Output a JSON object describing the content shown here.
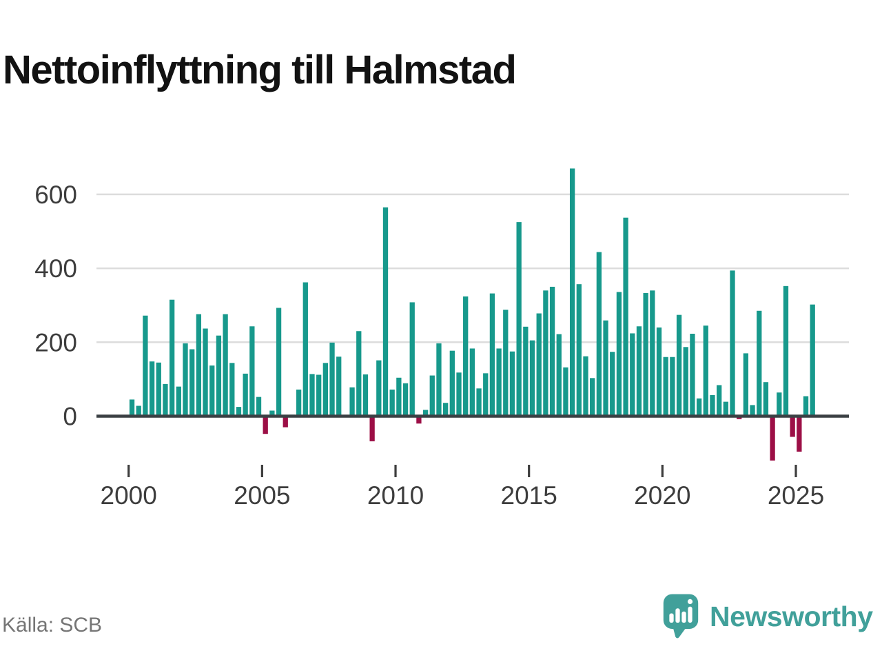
{
  "title": "Nettoinflyttning till Halmstad",
  "source": "Källa: SCB",
  "logo": {
    "text": "Newsworthy",
    "icon": "newsworthy-speech-bubble-bar-chart-icon"
  },
  "colors": {
    "positive_bar": "#17998c",
    "negative_bar": "#9c0f46",
    "gridline": "#dcdcdc",
    "axis_line": "#3b4044",
    "tick_label": "#3d3d3d",
    "title_text": "#121212",
    "source_text": "#757575",
    "logo_teal": "#41a09a"
  },
  "chart_data": {
    "type": "bar",
    "title": "Nettoinflyttning till Halmstad",
    "xlabel": "",
    "ylabel": "",
    "grid": "horizontal",
    "legend": "none",
    "ylim": [
      -150,
      700
    ],
    "y_ticks": [
      0,
      200,
      400,
      600
    ],
    "y_tick_labels": [
      "0",
      "200",
      "400",
      "600"
    ],
    "x_tick_labels": [
      "2000",
      "2005",
      "2010",
      "2015",
      "2020",
      "2025"
    ],
    "frequency": "quarterly",
    "first_period": "2000 K1",
    "last_period": "2025 K3",
    "years": [
      {
        "year": 2000,
        "values": [
          45,
          28,
          272,
          148
        ]
      },
      {
        "year": 2001,
        "values": [
          145,
          87,
          315,
          80
        ]
      },
      {
        "year": 2002,
        "values": [
          197,
          181,
          276,
          237
        ]
      },
      {
        "year": 2003,
        "values": [
          137,
          218,
          276,
          144
        ]
      },
      {
        "year": 2004,
        "values": [
          25,
          115,
          243,
          52
        ]
      },
      {
        "year": 2005,
        "values": [
          -48,
          15,
          293,
          -30
        ]
      },
      {
        "year": 2006,
        "values": [
          4,
          72,
          362,
          114
        ]
      },
      {
        "year": 2007,
        "values": [
          112,
          144,
          199,
          161
        ]
      },
      {
        "year": 2008,
        "values": [
          2,
          78,
          230,
          113
        ]
      },
      {
        "year": 2009,
        "values": [
          -68,
          151,
          565,
          72
        ]
      },
      {
        "year": 2010,
        "values": [
          104,
          89,
          308,
          -20
        ]
      },
      {
        "year": 2011,
        "values": [
          17,
          110,
          197,
          36
        ]
      },
      {
        "year": 2012,
        "values": [
          177,
          118,
          324,
          183
        ]
      },
      {
        "year": 2013,
        "values": [
          75,
          116,
          332,
          183
        ]
      },
      {
        "year": 2014,
        "values": [
          288,
          175,
          525,
          242
        ]
      },
      {
        "year": 2015,
        "values": [
          205,
          278,
          340,
          350
        ]
      },
      {
        "year": 2016,
        "values": [
          222,
          132,
          670,
          357
        ]
      },
      {
        "year": 2017,
        "values": [
          162,
          103,
          444,
          259
        ]
      },
      {
        "year": 2018,
        "values": [
          174,
          336,
          537,
          224
        ]
      },
      {
        "year": 2019,
        "values": [
          243,
          333,
          340,
          240
        ]
      },
      {
        "year": 2020,
        "values": [
          160,
          160,
          274,
          187
        ]
      },
      {
        "year": 2021,
        "values": [
          223,
          48,
          245,
          57
        ]
      },
      {
        "year": 2022,
        "values": [
          84,
          39,
          394,
          -8
        ]
      },
      {
        "year": 2023,
        "values": [
          170,
          30,
          285,
          92
        ]
      },
      {
        "year": 2024,
        "values": [
          -120,
          64,
          352,
          -56
        ]
      },
      {
        "year": 2025,
        "values": [
          -96,
          54,
          302
        ]
      }
    ]
  }
}
